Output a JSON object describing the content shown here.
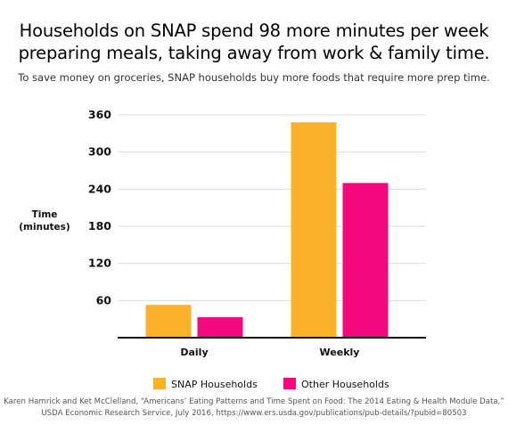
{
  "title_lines": [
    "Households on SNAP spend 98 more minutes per week",
    "preparing meals, taking away from work & family time."
  ],
  "subtitle": "To save money on groceries, SNAP households buy more foods that require more prep time.",
  "source_lines": [
    "Karen Hamrick and Ket McClelland, “Americans’ Eating Patterns and Time Spent on Food: The 2014 Eating & Health Module Data,”",
    "USDA Economic Research Service, July 2016, https://www.ers.usda.gov/publications/pub-details/?pubid=80503"
  ],
  "chart_data": {
    "type": "bar",
    "categories": [
      "Daily",
      "Weekly"
    ],
    "series": [
      {
        "name": "SNAP Households",
        "color": "#FBB12A",
        "values": [
          53,
          348
        ]
      },
      {
        "name": "Other Households",
        "color": "#F2097D",
        "values": [
          33,
          250
        ]
      }
    ],
    "ylabel_lines": [
      "Time",
      "(minutes)"
    ],
    "yticks": [
      60,
      120,
      180,
      240,
      300,
      360
    ],
    "ylim": [
      0,
      360
    ],
    "grid": true,
    "legend_position": "bottom"
  }
}
